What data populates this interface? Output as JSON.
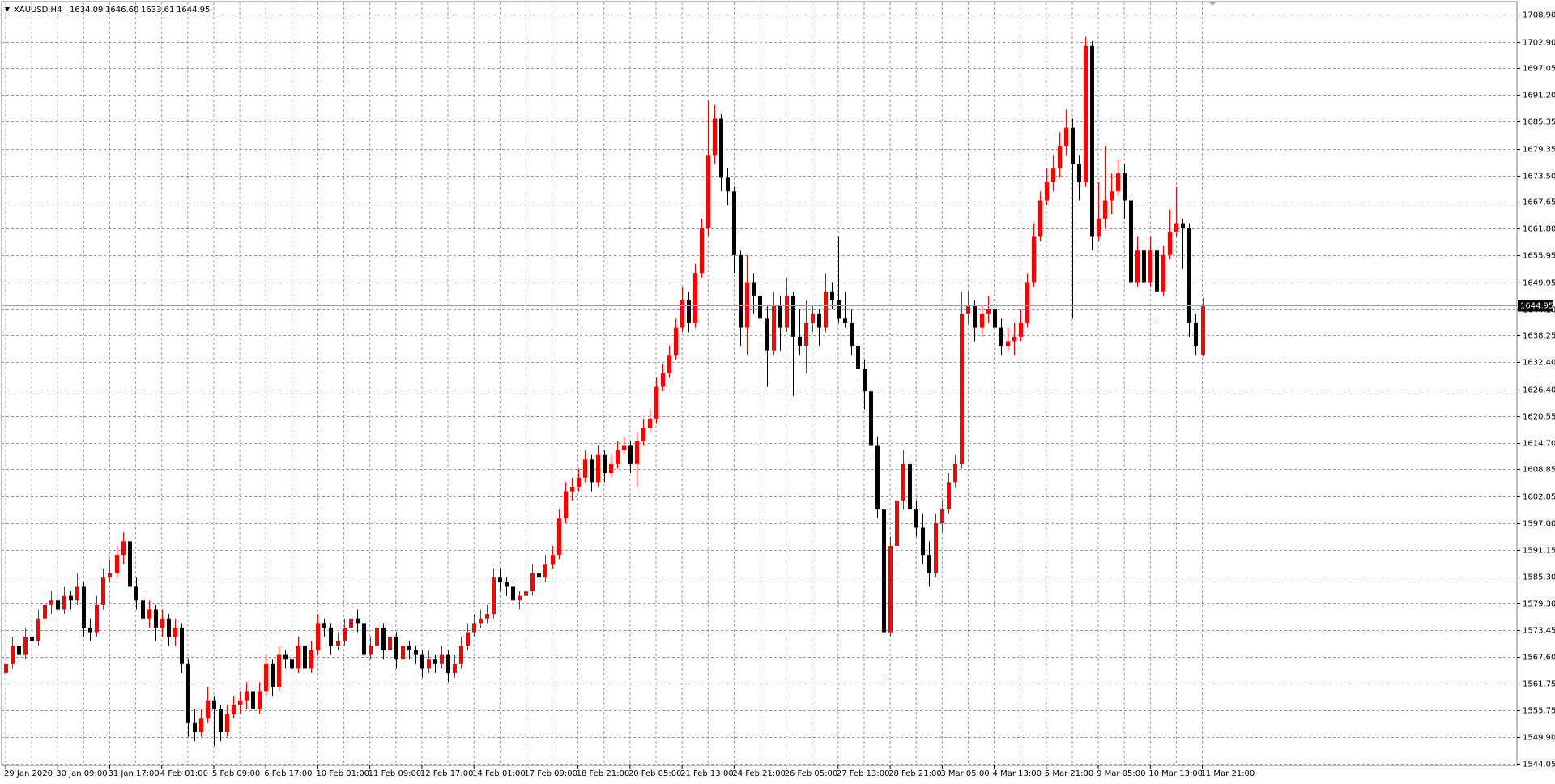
{
  "chart_data": {
    "type": "candlestick",
    "title": "XAUUSD,H4",
    "ohlc_labels": [
      "1634.09",
      "1646.60",
      "1633.61",
      "1644.95"
    ],
    "bull_color": "#ff0000",
    "bear_color": "#000000",
    "price_line_color": "#8fa3c0",
    "grid": true,
    "ylim": [
      1544.05,
      1708.9
    ],
    "yticks": [
      {
        "value": 1708.9,
        "label": "1708.90"
      },
      {
        "value": 1702.9,
        "label": "1702.90"
      },
      {
        "value": 1697.05,
        "label": "1697.05"
      },
      {
        "value": 1691.2,
        "label": "1691.20"
      },
      {
        "value": 1685.35,
        "label": "1685.35"
      },
      {
        "value": 1679.35,
        "label": "1679.35"
      },
      {
        "value": 1673.5,
        "label": "1673.50"
      },
      {
        "value": 1667.65,
        "label": "1667.65"
      },
      {
        "value": 1661.8,
        "label": "1661.80"
      },
      {
        "value": 1655.95,
        "label": "1655.95"
      },
      {
        "value": 1649.95,
        "label": "1649.95"
      },
      {
        "value": 1644.1,
        "label": "1644.10"
      },
      {
        "value": 1638.25,
        "label": "1638.25"
      },
      {
        "value": 1632.4,
        "label": "1632.40"
      },
      {
        "value": 1626.4,
        "label": "1626.40"
      },
      {
        "value": 1620.55,
        "label": "1620.55"
      },
      {
        "value": 1614.7,
        "label": "1614.70"
      },
      {
        "value": 1608.85,
        "label": "1608.85"
      },
      {
        "value": 1602.85,
        "label": "1602.85"
      },
      {
        "value": 1597.0,
        "label": "1597.00"
      },
      {
        "value": 1591.15,
        "label": "1591.15"
      },
      {
        "value": 1585.3,
        "label": "1585.30"
      },
      {
        "value": 1579.3,
        "label": "1579.30"
      },
      {
        "value": 1573.45,
        "label": "1573.45"
      },
      {
        "value": 1567.6,
        "label": "1567.60"
      },
      {
        "value": 1561.75,
        "label": "1561.75"
      },
      {
        "value": 1555.75,
        "label": "1555.75"
      },
      {
        "value": 1549.9,
        "label": "1549.90"
      },
      {
        "value": 1544.05,
        "label": "1544.05"
      }
    ],
    "categories": [
      "29 Jan 2020",
      null,
      null,
      null,
      null,
      null,
      null,
      null,
      "30 Jan 09:00",
      null,
      null,
      null,
      null,
      null,
      null,
      null,
      "31 Jan 17:00",
      null,
      null,
      null,
      null,
      null,
      null,
      null,
      "4 Feb 01:00",
      null,
      null,
      null,
      null,
      null,
      null,
      null,
      "5 Feb 09:00",
      null,
      null,
      null,
      null,
      null,
      null,
      null,
      "6 Feb 17:00",
      null,
      null,
      null,
      null,
      null,
      null,
      null,
      "10 Feb 01:00",
      null,
      null,
      null,
      null,
      null,
      null,
      null,
      "11 Feb 09:00",
      null,
      null,
      null,
      null,
      null,
      null,
      null,
      "12 Feb 17:00",
      null,
      null,
      null,
      null,
      null,
      null,
      null,
      "14 Feb 01:00",
      null,
      null,
      null,
      null,
      null,
      null,
      null,
      "17 Feb 09:00",
      null,
      null,
      null,
      null,
      null,
      null,
      null,
      "18 Feb 21:00",
      null,
      null,
      null,
      null,
      null,
      null,
      null,
      "20 Feb 05:00",
      null,
      null,
      null,
      null,
      null,
      null,
      null,
      "21 Feb 13:00",
      null,
      null,
      null,
      null,
      null,
      null,
      null,
      "24 Feb 21:00",
      null,
      null,
      null,
      null,
      null,
      null,
      null,
      "26 Feb 05:00",
      null,
      null,
      null,
      null,
      null,
      null,
      null,
      "27 Feb 13:00",
      null,
      null,
      null,
      null,
      null,
      null,
      null,
      "28 Feb 21:00",
      null,
      null,
      null,
      null,
      null,
      null,
      null,
      "3 Mar 05:00",
      null,
      null,
      null,
      null,
      null,
      null,
      null,
      "4 Mar 13:00",
      null,
      null,
      null,
      null,
      null,
      null,
      null,
      "5 Mar 21:00",
      null,
      null,
      null,
      null,
      null,
      null,
      null,
      "9 Mar 05:00",
      null,
      null,
      null,
      null,
      null,
      null,
      null,
      "10 Mar 13:00",
      null,
      null,
      null,
      null,
      null,
      null,
      null,
      "11 Mar 21:00"
    ],
    "candles": [
      [
        1564,
        1571,
        1563,
        1566
      ],
      [
        1566,
        1572,
        1565,
        1570
      ],
      [
        1570,
        1572,
        1566,
        1568
      ],
      [
        1568,
        1574,
        1567,
        1572
      ],
      [
        1572,
        1573,
        1569,
        1571
      ],
      [
        1571,
        1578,
        1570,
        1576
      ],
      [
        1576,
        1581,
        1575,
        1579
      ],
      [
        1579,
        1582,
        1577,
        1580
      ],
      [
        1580,
        1581,
        1576,
        1578
      ],
      [
        1578,
        1583,
        1577,
        1581
      ],
      [
        1581,
        1582,
        1578,
        1580
      ],
      [
        1580,
        1586,
        1579,
        1583
      ],
      [
        1583,
        1584,
        1572,
        1574
      ],
      [
        1574,
        1576,
        1571,
        1573
      ],
      [
        1573,
        1581,
        1572,
        1579
      ],
      [
        1579,
        1587,
        1578,
        1585
      ],
      [
        1585,
        1589,
        1584,
        1586
      ],
      [
        1586,
        1592,
        1585,
        1590
      ],
      [
        1590,
        1595,
        1588,
        1593
      ],
      [
        1593,
        1594,
        1581,
        1583
      ],
      [
        1583,
        1585,
        1578,
        1580
      ],
      [
        1580,
        1582,
        1574,
        1576
      ],
      [
        1576,
        1580,
        1574,
        1578
      ],
      [
        1578,
        1579,
        1571,
        1574
      ],
      [
        1574,
        1578,
        1572,
        1576
      ],
      [
        1576,
        1577,
        1570,
        1572
      ],
      [
        1572,
        1576,
        1570,
        1574
      ],
      [
        1574,
        1575,
        1564,
        1566
      ],
      [
        1566,
        1567,
        1550,
        1553
      ],
      [
        1553,
        1556,
        1549,
        1551
      ],
      [
        1551,
        1556,
        1550,
        1554
      ],
      [
        1554,
        1561,
        1553,
        1558
      ],
      [
        1558,
        1559,
        1548,
        1556
      ],
      [
        1556,
        1557,
        1549,
        1551
      ],
      [
        1551,
        1557,
        1550,
        1555
      ],
      [
        1555,
        1559,
        1554,
        1557
      ],
      [
        1557,
        1560,
        1555,
        1558
      ],
      [
        1558,
        1562,
        1556,
        1560
      ],
      [
        1560,
        1561,
        1554,
        1556
      ],
      [
        1556,
        1562,
        1555,
        1560
      ],
      [
        1560,
        1568,
        1559,
        1566
      ],
      [
        1566,
        1567,
        1559,
        1561
      ],
      [
        1561,
        1570,
        1560,
        1568
      ],
      [
        1568,
        1569,
        1565,
        1567
      ],
      [
        1567,
        1568,
        1563,
        1565
      ],
      [
        1565,
        1572,
        1564,
        1570
      ],
      [
        1570,
        1571,
        1562,
        1565
      ],
      [
        1565,
        1571,
        1564,
        1569
      ],
      [
        1569,
        1577,
        1568,
        1575
      ],
      [
        1575,
        1576,
        1572,
        1574
      ],
      [
        1574,
        1575,
        1568,
        1570
      ],
      [
        1570,
        1573,
        1569,
        1571
      ],
      [
        1571,
        1576,
        1570,
        1574
      ],
      [
        1574,
        1578,
        1573,
        1576
      ],
      [
        1576,
        1578,
        1573,
        1575
      ],
      [
        1575,
        1576,
        1566,
        1568
      ],
      [
        1568,
        1572,
        1567,
        1570
      ],
      [
        1570,
        1576,
        1569,
        1574
      ],
      [
        1574,
        1575,
        1567,
        1569
      ],
      [
        1569,
        1574,
        1563,
        1572
      ],
      [
        1572,
        1573,
        1565,
        1567
      ],
      [
        1567,
        1571,
        1566,
        1570
      ],
      [
        1570,
        1571,
        1567,
        1569
      ],
      [
        1569,
        1570,
        1566,
        1568
      ],
      [
        1568,
        1569,
        1563,
        1565
      ],
      [
        1565,
        1569,
        1564,
        1567
      ],
      [
        1567,
        1568,
        1564,
        1566
      ],
      [
        1566,
        1570,
        1565,
        1568
      ],
      [
        1568,
        1569,
        1562,
        1564
      ],
      [
        1564,
        1568,
        1563,
        1566
      ],
      [
        1566,
        1572,
        1565,
        1570
      ],
      [
        1570,
        1575,
        1569,
        1573
      ],
      [
        1573,
        1577,
        1572,
        1575
      ],
      [
        1575,
        1578,
        1574,
        1576
      ],
      [
        1576,
        1579,
        1575,
        1577
      ],
      [
        1577,
        1587,
        1576,
        1585
      ],
      [
        1585,
        1587,
        1582,
        1584
      ],
      [
        1584,
        1585,
        1581,
        1583
      ],
      [
        1583,
        1584,
        1579,
        1580
      ],
      [
        1580,
        1582,
        1578,
        1581
      ],
      [
        1581,
        1583,
        1579,
        1582
      ],
      [
        1582,
        1588,
        1581,
        1586
      ],
      [
        1586,
        1587,
        1584,
        1585
      ],
      [
        1585,
        1590,
        1584,
        1588
      ],
      [
        1588,
        1592,
        1587,
        1590
      ],
      [
        1590,
        1600,
        1589,
        1598
      ],
      [
        1598,
        1606,
        1597,
        1604
      ],
      [
        1604,
        1607,
        1602,
        1605
      ],
      [
        1605,
        1609,
        1604,
        1607
      ],
      [
        1607,
        1613,
        1606,
        1611
      ],
      [
        1611,
        1612,
        1604,
        1606
      ],
      [
        1606,
        1614,
        1605,
        1612
      ],
      [
        1612,
        1613,
        1606,
        1608
      ],
      [
        1608,
        1612,
        1607,
        1610
      ],
      [
        1610,
        1615,
        1609,
        1613
      ],
      [
        1613,
        1616,
        1612,
        1614
      ],
      [
        1614,
        1615,
        1608,
        1610
      ],
      [
        1610,
        1617,
        1605,
        1615
      ],
      [
        1615,
        1620,
        1614,
        1618
      ],
      [
        1618,
        1622,
        1617,
        1620
      ],
      [
        1620,
        1629,
        1619,
        1627
      ],
      [
        1627,
        1632,
        1626,
        1630
      ],
      [
        1630,
        1636,
        1629,
        1634
      ],
      [
        1634,
        1642,
        1633,
        1640
      ],
      [
        1640,
        1649,
        1639,
        1646
      ],
      [
        1646,
        1648,
        1639,
        1641
      ],
      [
        1641,
        1654,
        1640,
        1652
      ],
      [
        1652,
        1664,
        1651,
        1662
      ],
      [
        1662,
        1690,
        1660,
        1678
      ],
      [
        1678,
        1689,
        1676,
        1686
      ],
      [
        1686,
        1687,
        1670,
        1673
      ],
      [
        1673,
        1675,
        1667,
        1670
      ],
      [
        1670,
        1671,
        1652,
        1656
      ],
      [
        1656,
        1657,
        1636,
        1640
      ],
      [
        1640,
        1656,
        1634,
        1650
      ],
      [
        1650,
        1652,
        1643,
        1647
      ],
      [
        1647,
        1649,
        1636,
        1642
      ],
      [
        1642,
        1645,
        1627,
        1635
      ],
      [
        1635,
        1648,
        1634,
        1645
      ],
      [
        1645,
        1647,
        1635,
        1640
      ],
      [
        1640,
        1651,
        1639,
        1647
      ],
      [
        1647,
        1648,
        1625,
        1638
      ],
      [
        1638,
        1644,
        1634,
        1636
      ],
      [
        1636,
        1646,
        1630,
        1641
      ],
      [
        1641,
        1645,
        1639,
        1643
      ],
      [
        1643,
        1644,
        1636,
        1640
      ],
      [
        1640,
        1652,
        1639,
        1648
      ],
      [
        1648,
        1650,
        1644,
        1646
      ],
      [
        1646,
        1660,
        1641,
        1642
      ],
      [
        1642,
        1648,
        1640,
        1641
      ],
      [
        1641,
        1644,
        1634,
        1636
      ],
      [
        1636,
        1638,
        1629,
        1631
      ],
      [
        1631,
        1633,
        1622,
        1626
      ],
      [
        1626,
        1628,
        1612,
        1614
      ],
      [
        1614,
        1616,
        1598,
        1600
      ],
      [
        1600,
        1602,
        1563,
        1573
      ],
      [
        1573,
        1594,
        1572,
        1592
      ],
      [
        1592,
        1604,
        1588,
        1602
      ],
      [
        1602,
        1613,
        1600,
        1610
      ],
      [
        1610,
        1612,
        1598,
        1600
      ],
      [
        1600,
        1602,
        1594,
        1596
      ],
      [
        1596,
        1599,
        1588,
        1590
      ],
      [
        1590,
        1593,
        1583,
        1586
      ],
      [
        1586,
        1599,
        1585,
        1597
      ],
      [
        1597,
        1602,
        1595,
        1600
      ],
      [
        1600,
        1608,
        1599,
        1606
      ],
      [
        1606,
        1612,
        1605,
        1610
      ],
      [
        1610,
        1648,
        1609,
        1643
      ],
      [
        1643,
        1648,
        1641,
        1645
      ],
      [
        1645,
        1646,
        1637,
        1640
      ],
      [
        1640,
        1645,
        1638,
        1643
      ],
      [
        1643,
        1647,
        1641,
        1644
      ],
      [
        1644,
        1646,
        1632,
        1640
      ],
      [
        1640,
        1642,
        1634,
        1636
      ],
      [
        1636,
        1640,
        1635,
        1637
      ],
      [
        1637,
        1641,
        1634,
        1638
      ],
      [
        1638,
        1644,
        1637,
        1641
      ],
      [
        1641,
        1652,
        1640,
        1650
      ],
      [
        1650,
        1663,
        1649,
        1660
      ],
      [
        1660,
        1670,
        1659,
        1668
      ],
      [
        1668,
        1675,
        1667,
        1672
      ],
      [
        1672,
        1678,
        1670,
        1675
      ],
      [
        1675,
        1683,
        1673,
        1680
      ],
      [
        1680,
        1688,
        1678,
        1684
      ],
      [
        1684,
        1686,
        1642,
        1676
      ],
      [
        1676,
        1678,
        1668,
        1672
      ],
      [
        1672,
        1704,
        1671,
        1702
      ],
      [
        1702,
        1703,
        1657,
        1660
      ],
      [
        1660,
        1672,
        1659,
        1664
      ],
      [
        1664,
        1680,
        1662,
        1668
      ],
      [
        1668,
        1674,
        1665,
        1670
      ],
      [
        1670,
        1677,
        1669,
        1674
      ],
      [
        1674,
        1676,
        1664,
        1668
      ],
      [
        1668,
        1669,
        1648,
        1650
      ],
      [
        1650,
        1660,
        1649,
        1657
      ],
      [
        1657,
        1659,
        1647,
        1650
      ],
      [
        1650,
        1660,
        1649,
        1657
      ],
      [
        1657,
        1659,
        1641,
        1648
      ],
      [
        1648,
        1658,
        1647,
        1656
      ],
      [
        1656,
        1666,
        1655,
        1661
      ],
      [
        1661,
        1671,
        1660,
        1663
      ],
      [
        1663,
        1664,
        1653,
        1662
      ],
      [
        1662,
        1663,
        1638,
        1641
      ],
      [
        1641,
        1643,
        1634,
        1636
      ],
      [
        1634.09,
        1646.6,
        1633.61,
        1644.95
      ]
    ]
  }
}
